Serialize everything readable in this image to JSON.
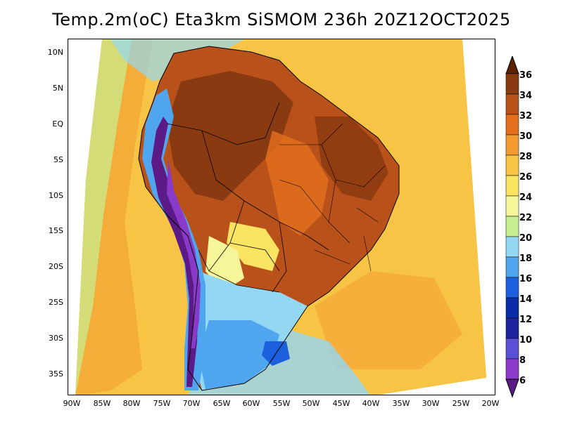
{
  "title": "Temp.2m(oC) Eta3km SiSMOM 236h 20Z12OCT2025",
  "lat_labels": [
    "10N",
    "5N",
    "EQ",
    "5S",
    "10S",
    "15S",
    "20S",
    "25S",
    "30S",
    "35S"
  ],
  "lon_labels": [
    "90W",
    "85W",
    "80W",
    "75W",
    "70W",
    "65W",
    "60W",
    "55W",
    "50W",
    "45W",
    "40W",
    "35W",
    "30W",
    "25W",
    "20W"
  ],
  "colorbar": {
    "labels": [
      "36",
      "34",
      "32",
      "30",
      "28",
      "26",
      "24",
      "22",
      "20",
      "18",
      "16",
      "14",
      "12",
      "10",
      "8",
      "6"
    ],
    "colors": [
      "#5a2200",
      "#8a3a10",
      "#b8521a",
      "#e4701e",
      "#f39a30",
      "#f7c445",
      "#fbe462",
      "#f7f59a",
      "#c6ef92",
      "#94d7f2",
      "#4fa6ee",
      "#1d60dd",
      "#0a2ca6",
      "#1e24a0",
      "#5a4fd6",
      "#8a3ac8",
      "#5c1a86"
    ]
  },
  "map": {
    "ocean_color": "#f7c445",
    "land_hot": "#b8521a",
    "land_very_hot": "#8a3a10",
    "south_cool": "#94d7f2",
    "andes_cold": "#4fa6ee"
  }
}
